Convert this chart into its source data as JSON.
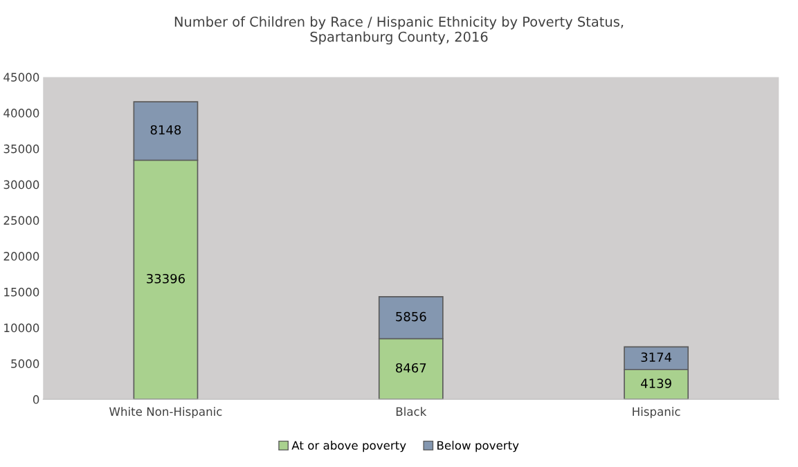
{
  "chart_data": {
    "type": "bar",
    "title": "Number of Children by Race / Hispanic Ethnicity by Poverty Status,\nSpartanburg County, 2016",
    "categories": [
      "White Non-Hispanic",
      "Black",
      "Hispanic"
    ],
    "series": [
      {
        "name": "At or above poverty",
        "color": "#a9d18e",
        "values": [
          33396,
          8467,
          4139
        ]
      },
      {
        "name": "Below poverty",
        "color": "#8497b0",
        "values": [
          8148,
          5856,
          3174
        ]
      }
    ],
    "stacked": true,
    "data_labels": true,
    "ylim": [
      0,
      45000
    ],
    "yticks": [
      0,
      5000,
      10000,
      15000,
      20000,
      25000,
      30000,
      35000,
      40000,
      45000
    ],
    "grid": false,
    "legend": "bottom"
  }
}
